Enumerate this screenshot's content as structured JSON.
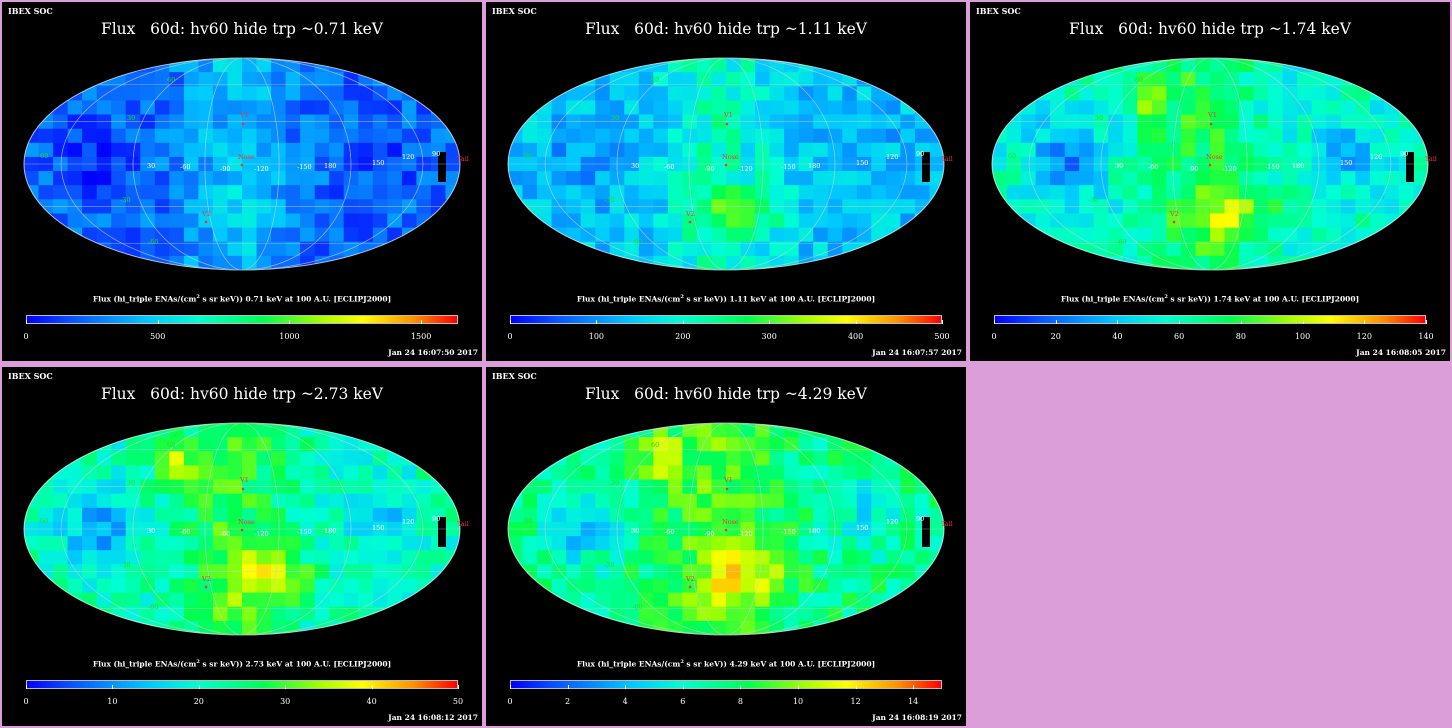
{
  "header_label": "IBEX SOC",
  "colorbar_suffix": " at 100 A.U. [ECLIPJ2000]",
  "colorbar_prefix_a": "Flux (hi_triple ENAs/(cm",
  "colorbar_prefix_b": " s sr keV))  ",
  "colorbar_sup": "2",
  "map_labels": {
    "v1": "V1",
    "v2": "V2",
    "nose": "Nose",
    "tail": "Tail",
    "lat_top": "60",
    "lat_30": "30",
    "lat_m60": "-60",
    "lat_m30": "-30",
    "lon_60": "60",
    "lon_30": "30",
    "lon_m60": "-60",
    "lon_m90": "-90",
    "lon_m120": "-120",
    "lon_m150": "-150",
    "lon_180": "180",
    "lon_150": "150",
    "lon_120": "120",
    "lon_90": "90"
  },
  "panels": [
    {
      "title": "Flux   60d: hv60 hide trp ~0.71 keV",
      "energy": "0.71 keV",
      "ticks": [
        "0",
        "500",
        "1000",
        "1500"
      ],
      "tick_values": [
        0,
        500,
        1000,
        1500
      ],
      "range_max": 1640,
      "date": "Jan 24 16:07:50 2017",
      "level": 0.15
    },
    {
      "title": "Flux   60d: hv60 hide trp ~1.11 keV",
      "energy": "1.11 keV",
      "ticks": [
        "0",
        "100",
        "200",
        "300",
        "400",
        "500"
      ],
      "tick_values": [
        0,
        100,
        200,
        300,
        400,
        500
      ],
      "range_max": 500,
      "date": "Jan 24 16:07:57 2017",
      "level": 0.3
    },
    {
      "title": "Flux   60d: hv60 hide trp ~1.74 keV",
      "energy": "1.74 keV",
      "ticks": [
        "0",
        "20",
        "40",
        "60",
        "80",
        "100",
        "120",
        "140"
      ],
      "tick_values": [
        0,
        20,
        40,
        60,
        80,
        100,
        120,
        140
      ],
      "range_max": 140,
      "date": "Jan 24 16:08:05 2017",
      "level": 0.42
    },
    {
      "title": "Flux   60d: hv60 hide trp ~2.73 keV",
      "energy": "2.73 keV",
      "ticks": [
        "0",
        "10",
        "20",
        "30",
        "40",
        "50"
      ],
      "tick_values": [
        0,
        10,
        20,
        30,
        40,
        50
      ],
      "range_max": 50,
      "date": "Jan 24 16:08:12 2017",
      "level": 0.45
    },
    {
      "title": "Flux   60d: hv60 hide trp ~4.29 keV",
      "energy": "4.29 keV",
      "ticks": [
        "0",
        "2",
        "4",
        "6",
        "8",
        "10",
        "12",
        "14"
      ],
      "tick_values": [
        0,
        2,
        4,
        6,
        8,
        10,
        12,
        14
      ],
      "range_max": 15,
      "date": "Jan 24 16:08:19 2017",
      "level": 0.5
    }
  ],
  "colors": {
    "background": "#dc9ed8",
    "panel": "#000000",
    "grid": "#cfcfcf",
    "marker": "#ff3030",
    "latlabel": "#22dd22"
  }
}
